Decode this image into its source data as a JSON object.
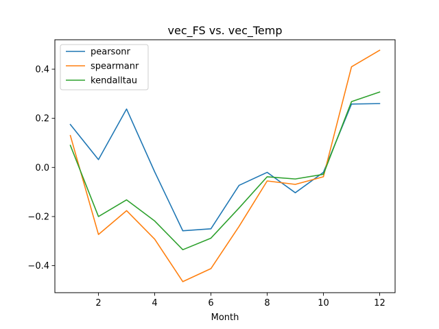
{
  "chart_data": {
    "type": "line",
    "title": "vec_FS vs. vec_Temp",
    "xlabel": "Month",
    "ylabel": "",
    "x": [
      1,
      2,
      3,
      4,
      5,
      6,
      7,
      8,
      9,
      10,
      11,
      12
    ],
    "xlim": [
      0.45,
      12.55
    ],
    "ylim": [
      -0.51,
      0.52
    ],
    "xticks": [
      2,
      4,
      6,
      8,
      10,
      12
    ],
    "yticks": [
      -0.4,
      -0.2,
      0.0,
      0.2,
      0.4
    ],
    "ytick_labels": [
      "−0.4",
      "−0.2",
      "0.0",
      "0.2",
      "0.4"
    ],
    "xtick_labels": [
      "2",
      "4",
      "6",
      "8",
      "10",
      "12"
    ],
    "grid": false,
    "legend_position": "top-left",
    "series": [
      {
        "name": "pearsonr",
        "color": "#1f77b4",
        "values": [
          0.175,
          0.032,
          0.238,
          -0.018,
          -0.258,
          -0.25,
          -0.073,
          -0.02,
          -0.103,
          -0.02,
          0.258,
          0.26
        ]
      },
      {
        "name": "spearmanr",
        "color": "#ff7f0e",
        "values": [
          0.13,
          -0.273,
          -0.176,
          -0.292,
          -0.465,
          -0.412,
          -0.24,
          -0.055,
          -0.069,
          -0.038,
          0.41,
          0.477
        ]
      },
      {
        "name": "kendalltau",
        "color": "#2ca02c",
        "values": [
          0.09,
          -0.2,
          -0.132,
          -0.218,
          -0.335,
          -0.288,
          -0.165,
          -0.038,
          -0.047,
          -0.028,
          0.268,
          0.307
        ]
      }
    ]
  }
}
